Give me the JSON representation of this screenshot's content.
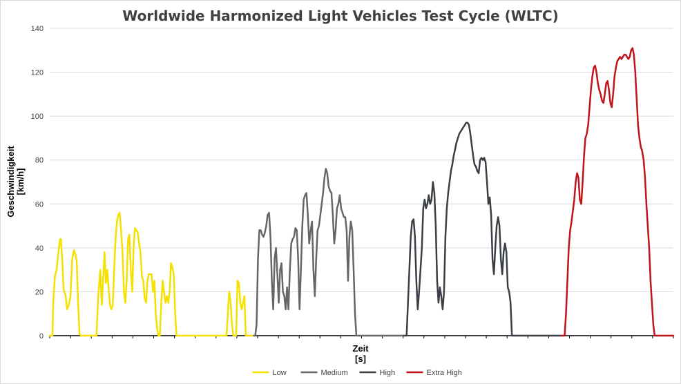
{
  "chart_data": {
    "type": "line",
    "title": "Worldwide Harmonized Light Vehicles Test Cycle (WLTC)",
    "xlabel": "Zeit",
    "xunit": "[s]",
    "ylabel": "Geschwindigkeit",
    "yunit": "[km/h]",
    "xlim": [
      0,
      1800
    ],
    "ylim": [
      0,
      140
    ],
    "yticks": [
      0,
      20,
      40,
      60,
      80,
      100,
      120,
      140
    ],
    "grid": true,
    "legend_position": "bottom",
    "series": [
      {
        "name": "Low",
        "color": "#f5e000",
        "x": [
          0,
          8,
          10,
          15,
          20,
          25,
          30,
          32,
          36,
          40,
          46,
          50,
          55,
          60,
          65,
          70,
          74,
          78,
          82,
          86,
          90,
          92,
          96,
          100,
          110,
          120,
          130,
          135,
          140,
          146,
          150,
          154,
          158,
          162,
          166,
          170,
          174,
          178,
          182,
          186,
          190,
          194,
          198,
          202,
          206,
          210,
          214,
          218,
          222,
          226,
          230,
          234,
          238,
          242,
          246,
          250,
          254,
          258,
          262,
          266,
          270,
          274,
          278,
          282,
          286,
          290,
          294,
          298,
          302,
          306,
          310,
          314,
          318,
          322,
          326,
          330,
          334,
          338,
          342,
          346,
          350,
          354,
          358,
          362,
          366,
          370,
          374,
          378,
          382,
          386,
          390,
          394,
          398,
          402,
          406,
          410,
          414,
          418,
          422,
          426,
          430,
          440,
          450,
          460,
          470,
          480,
          490,
          500,
          510,
          514,
          518,
          522,
          526,
          530,
          534,
          538,
          542,
          546,
          550,
          554,
          558,
          562,
          566,
          570,
          589
        ],
        "y": [
          0,
          0,
          15,
          27,
          30,
          38,
          44,
          44,
          35,
          21,
          18,
          12,
          14,
          18,
          35,
          39,
          37,
          34,
          15,
          1,
          0,
          0,
          0,
          0,
          0,
          0,
          0,
          0,
          18,
          30,
          14,
          25,
          38,
          24,
          30,
          21,
          14,
          12,
          14,
          30,
          44,
          52,
          55,
          56,
          48,
          38,
          20,
          15,
          25,
          44,
          46,
          30,
          20,
          40,
          49,
          48,
          47,
          42,
          38,
          27,
          25,
          17,
          15,
          25,
          28,
          28,
          28,
          20,
          25,
          10,
          3,
          0,
          0,
          15,
          25,
          20,
          15,
          18,
          15,
          20,
          33,
          31,
          28,
          10,
          0,
          0,
          0,
          0,
          0,
          0,
          0,
          0,
          0,
          0,
          0,
          0,
          0,
          0,
          0,
          0,
          0,
          0,
          0,
          0,
          0,
          0,
          0,
          0,
          0,
          10,
          20,
          15,
          5,
          0,
          0,
          0,
          25,
          24,
          15,
          12,
          15,
          18,
          0,
          0,
          0
        ]
      },
      {
        "name": "Medium",
        "color": "#666666",
        "x": [
          589,
          593,
          597,
          601,
          605,
          609,
          613,
          617,
          621,
          625,
          629,
          633,
          637,
          641,
          645,
          649,
          653,
          657,
          661,
          665,
          669,
          673,
          677,
          681,
          685,
          689,
          693,
          697,
          701,
          705,
          709,
          713,
          717,
          721,
          725,
          729,
          733,
          737,
          741,
          745,
          749,
          753,
          757,
          761,
          765,
          769,
          773,
          777,
          781,
          785,
          789,
          793,
          797,
          801,
          805,
          809,
          813,
          817,
          821,
          825,
          829,
          833,
          837,
          841,
          845,
          849,
          853,
          857,
          861,
          865,
          869,
          873,
          877,
          881,
          885,
          889,
          893,
          897,
          901,
          905,
          909,
          913,
          917,
          921,
          925,
          929,
          933,
          937,
          941,
          945,
          949,
          953,
          957,
          961,
          965,
          969,
          973,
          977,
          981,
          985,
          989,
          993,
          1022
        ],
        "y": [
          0,
          0,
          5,
          35,
          48,
          48,
          46,
          45,
          47,
          50,
          55,
          56,
          45,
          25,
          12,
          35,
          40,
          28,
          15,
          30,
          33,
          20,
          18,
          12,
          22,
          12,
          30,
          42,
          44,
          45,
          49,
          48,
          35,
          12,
          30,
          50,
          62,
          64,
          65,
          55,
          42,
          48,
          52,
          30,
          18,
          35,
          48,
          50,
          55,
          60,
          65,
          72,
          76,
          74,
          68,
          66,
          65,
          55,
          42,
          48,
          58,
          60,
          64,
          58,
          56,
          54,
          54,
          48,
          25,
          45,
          52,
          48,
          30,
          10,
          0,
          0,
          0,
          0,
          0,
          0,
          0,
          0,
          0,
          0,
          0,
          0,
          0,
          0,
          0,
          0,
          0,
          0,
          0,
          0,
          0,
          0,
          0,
          0,
          0,
          0,
          0,
          0,
          0
        ]
      },
      {
        "name": "High",
        "color": "#3a3f46",
        "x": [
          1022,
          1030,
          1034,
          1038,
          1042,
          1046,
          1050,
          1054,
          1058,
          1062,
          1066,
          1070,
          1074,
          1078,
          1082,
          1086,
          1090,
          1094,
          1098,
          1102,
          1106,
          1110,
          1114,
          1118,
          1122,
          1126,
          1130,
          1134,
          1138,
          1142,
          1146,
          1150,
          1154,
          1158,
          1162,
          1166,
          1170,
          1174,
          1178,
          1182,
          1186,
          1190,
          1194,
          1198,
          1202,
          1206,
          1210,
          1214,
          1218,
          1222,
          1226,
          1230,
          1234,
          1238,
          1242,
          1246,
          1250,
          1254,
          1258,
          1262,
          1266,
          1270,
          1274,
          1278,
          1282,
          1286,
          1290,
          1294,
          1298,
          1302,
          1306,
          1310,
          1314,
          1318,
          1322,
          1326,
          1330,
          1334,
          1338,
          1342,
          1346,
          1350,
          1354,
          1358,
          1362,
          1366,
          1370,
          1374,
          1378,
          1382,
          1386,
          1390,
          1394,
          1398,
          1402,
          1406,
          1410,
          1414,
          1418,
          1422,
          1426,
          1430,
          1434,
          1438,
          1442,
          1446,
          1450,
          1454,
          1458,
          1462,
          1466,
          1470,
          1474,
          1478
        ],
        "y": [
          0,
          0,
          15,
          30,
          45,
          52,
          53,
          45,
          25,
          12,
          20,
          30,
          40,
          58,
          62,
          58,
          60,
          64,
          60,
          62,
          70,
          65,
          50,
          25,
          15,
          22,
          18,
          12,
          20,
          45,
          58,
          65,
          70,
          75,
          78,
          82,
          85,
          88,
          90,
          92,
          93,
          94,
          95,
          96,
          97,
          97,
          96,
          92,
          87,
          82,
          78,
          77,
          75,
          74,
          80,
          81,
          80,
          81,
          79,
          70,
          60,
          63,
          55,
          35,
          28,
          40,
          50,
          54,
          50,
          35,
          28,
          38,
          42,
          38,
          22,
          20,
          15,
          0,
          0,
          0,
          0,
          0,
          0,
          0,
          0,
          0,
          0,
          0,
          0,
          0,
          0,
          0,
          0,
          0,
          0,
          0,
          0,
          0,
          0,
          0,
          0,
          0,
          0,
          0,
          0,
          0,
          0,
          0,
          0,
          0,
          0,
          0,
          0,
          0
        ]
      },
      {
        "name": "Extra High",
        "color": "#c0141c",
        "x": [
          1478,
          1486,
          1490,
          1494,
          1498,
          1502,
          1506,
          1510,
          1514,
          1518,
          1522,
          1526,
          1530,
          1534,
          1538,
          1542,
          1546,
          1550,
          1554,
          1558,
          1562,
          1566,
          1570,
          1574,
          1578,
          1582,
          1586,
          1590,
          1594,
          1598,
          1602,
          1606,
          1610,
          1614,
          1618,
          1622,
          1626,
          1630,
          1634,
          1638,
          1642,
          1646,
          1650,
          1654,
          1658,
          1662,
          1666,
          1670,
          1674,
          1678,
          1682,
          1686,
          1690,
          1694,
          1698,
          1702,
          1706,
          1710,
          1714,
          1718,
          1722,
          1726,
          1730,
          1734,
          1738,
          1742,
          1746,
          1750,
          1754,
          1758,
          1762,
          1766,
          1770,
          1774,
          1778,
          1782,
          1786,
          1790,
          1794,
          1800
        ],
        "y": [
          0,
          0,
          10,
          25,
          40,
          48,
          52,
          57,
          62,
          70,
          74,
          72,
          62,
          60,
          70,
          82,
          90,
          92,
          96,
          104,
          112,
          118,
          122,
          123,
          120,
          115,
          112,
          110,
          107,
          106,
          110,
          115,
          116,
          112,
          106,
          104,
          110,
          118,
          122,
          125,
          126,
          127,
          126,
          127,
          128,
          128,
          127,
          126,
          127,
          130,
          131,
          128,
          120,
          108,
          96,
          90,
          86,
          84,
          80,
          72,
          60,
          50,
          40,
          25,
          15,
          5,
          0,
          0,
          0,
          0,
          0,
          0,
          0,
          0,
          0,
          0,
          0,
          0,
          0,
          0
        ]
      }
    ]
  }
}
